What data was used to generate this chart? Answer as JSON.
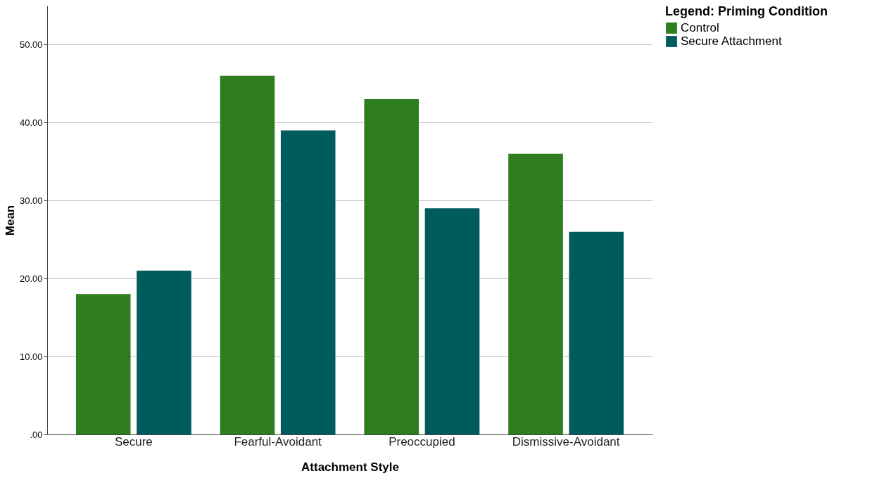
{
  "chart_data": {
    "type": "bar",
    "xlabel": "Attachment Style",
    "ylabel": "Mean",
    "legend_title": "Legend: Priming Condition",
    "categories": [
      "Secure",
      "Fearful-Avoidant",
      "Preoccupied",
      "Dismissive-Avoidant"
    ],
    "series": [
      {
        "name": "Control",
        "color": "#2e7d1f",
        "values": [
          18,
          46,
          43,
          36
        ]
      },
      {
        "name": "Secure Attachment",
        "color": "#005c5c",
        "values": [
          21,
          39,
          29,
          26
        ]
      }
    ],
    "ylim": [
      0,
      55
    ],
    "yticks": [
      {
        "value": 0,
        "label": ".00"
      },
      {
        "value": 10,
        "label": "10.00"
      },
      {
        "value": 20,
        "label": "20.00"
      },
      {
        "value": 30,
        "label": "30.00"
      },
      {
        "value": 40,
        "label": "40.00"
      },
      {
        "value": 50,
        "label": "50.00"
      }
    ],
    "grid": "y",
    "legend": "right"
  }
}
